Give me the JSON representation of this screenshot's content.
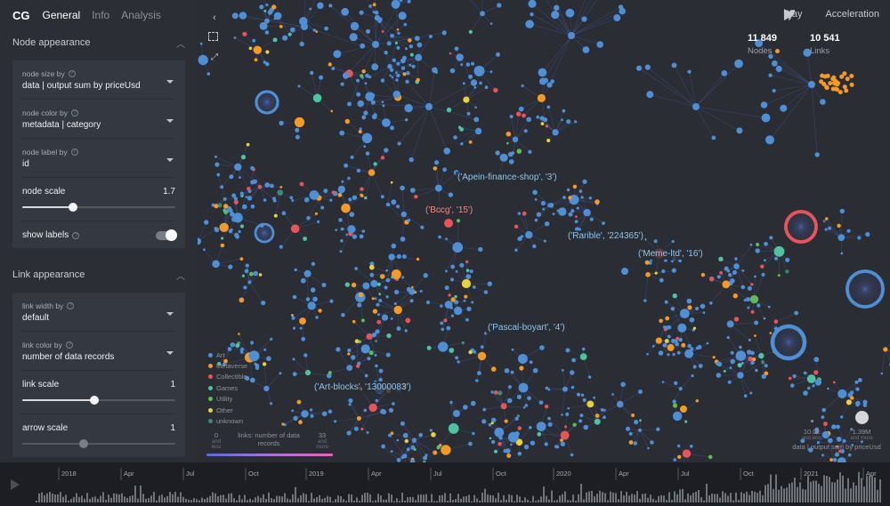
{
  "app": {
    "logo": "CG",
    "tabs": [
      {
        "label": "General",
        "active": true
      },
      {
        "label": "Info",
        "active": false
      },
      {
        "label": "Analysis",
        "active": false
      }
    ]
  },
  "node_section": {
    "title": "Node appearance",
    "size_by": {
      "label": "node size by",
      "value": "data | output sum by priceUsd"
    },
    "color_by": {
      "label": "node color by",
      "value": "metadata | category"
    },
    "label_by": {
      "label": "node label by",
      "value": "id"
    },
    "scale": {
      "label": "node scale",
      "value": "1.7",
      "fraction": 0.33
    },
    "show_labels": {
      "label": "show labels",
      "on": true
    }
  },
  "link_section": {
    "title": "Link appearance",
    "width_by": {
      "label": "link width by",
      "value": "default"
    },
    "color_by": {
      "label": "link color by",
      "value": "number of data records"
    },
    "scale": {
      "label": "link scale",
      "value": "1",
      "fraction": 0.47
    },
    "arrow_scale": {
      "label": "arrow scale",
      "value": "1",
      "fraction": 0.4
    }
  },
  "graph": {
    "play_label": "Play",
    "acceleration_label": "Acceleration",
    "nodes_count": "11 849",
    "nodes_label": "Nodes",
    "links_count": "10 541",
    "links_label": "Links",
    "labels": [
      {
        "text": "('Apein-finance-shop', '3')",
        "color": "#8fc4ef"
      },
      {
        "text": "('Bccg', '15')",
        "color": "#f08a8a"
      },
      {
        "text": "('Rarible', '224365')",
        "color": "#8fc4ef"
      },
      {
        "text": "('Meme-ltd', '16')",
        "color": "#8fc4ef"
      },
      {
        "text": "('Pascal-boyart', '4')",
        "color": "#8fc4ef"
      },
      {
        "text": "('Art-blocks', '13000083')",
        "color": "#8fc4ef"
      }
    ],
    "legend": [
      {
        "label": "Art",
        "color": "#4e8fd6"
      },
      {
        "label": "Metaverse",
        "color": "#f59a23"
      },
      {
        "label": "Collectible",
        "color": "#e8545a"
      },
      {
        "label": "Games",
        "color": "#4fc2a3"
      },
      {
        "label": "Utility",
        "color": "#5cbd52"
      },
      {
        "label": "Other",
        "color": "#e8d23a"
      },
      {
        "label": "unknown",
        "color": "#3e8a7a"
      }
    ],
    "link_legend": {
      "min": "0",
      "min_sub": "and less",
      "title": "links: number of data records",
      "max": "33",
      "max_sub": "and more"
    },
    "size_legend": {
      "min": "10.0k",
      "min_sub": "and less",
      "max": "1.39M",
      "max_sub": "and more",
      "caption": "data | output sum by priceUsd"
    }
  },
  "timeline": {
    "ticks": [
      {
        "label": "2018",
        "pos": 66
      },
      {
        "label": "Apr",
        "pos": 136
      },
      {
        "label": "Jul",
        "pos": 206
      },
      {
        "label": "Oct",
        "pos": 276
      },
      {
        "label": "2019",
        "pos": 344
      },
      {
        "label": "Apr",
        "pos": 414
      },
      {
        "label": "Jul",
        "pos": 484
      },
      {
        "label": "Oct",
        "pos": 554
      },
      {
        "label": "2020",
        "pos": 622
      },
      {
        "label": "Apr",
        "pos": 692
      },
      {
        "label": "Jul",
        "pos": 762
      },
      {
        "label": "Oct",
        "pos": 832
      },
      {
        "label": "2021",
        "pos": 900
      },
      {
        "label": "Apr",
        "pos": 970
      }
    ]
  }
}
